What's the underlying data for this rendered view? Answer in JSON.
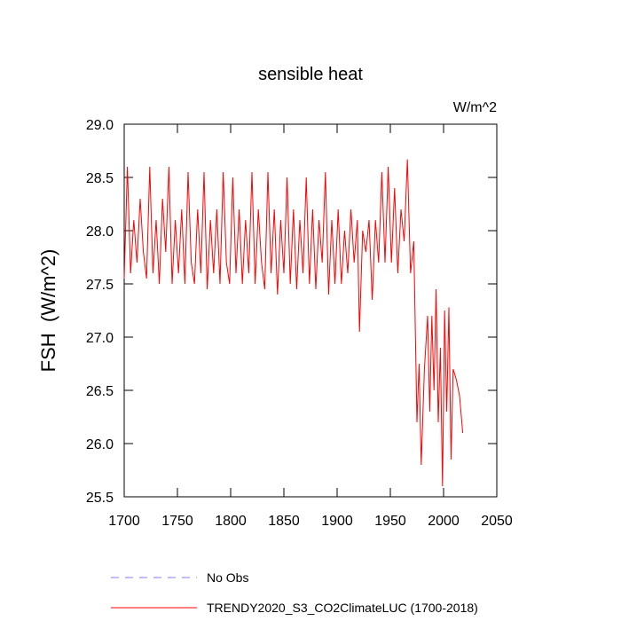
{
  "chart_data": {
    "type": "line",
    "title": "sensible heat",
    "units": "W/m^2",
    "y_label": "FSH  (W/m^2)",
    "xlim": [
      1700,
      2050
    ],
    "xticks": [
      1700,
      1750,
      1800,
      1850,
      1900,
      1950,
      2000,
      2050
    ],
    "ylim": [
      25.5,
      29.0
    ],
    "yticks": [
      25.5,
      {
        "value": 26,
        "label": "26.0"
      },
      26.5,
      {
        "value": 27,
        "label": "27.0"
      },
      27.5,
      {
        "value": 28,
        "label": "28.0"
      },
      28.5,
      {
        "value": 29,
        "label": "29.0"
      }
    ],
    "legend_entries": [
      {
        "name": "No Obs",
        "color": "#7f7fff",
        "dashed": true
      }
    ],
    "x": [
      1700,
      1703,
      1706,
      1709,
      1712,
      1715,
      1718,
      1721,
      1724,
      1727,
      1730,
      1733,
      1736,
      1739,
      1742,
      1745,
      1748,
      1751,
      1754,
      1757,
      1760,
      1763,
      1766,
      1769,
      1772,
      1775,
      1778,
      1781,
      1784,
      1787,
      1790,
      1793,
      1796,
      1799,
      1802,
      1805,
      1808,
      1811,
      1814,
      1817,
      1820,
      1823,
      1826,
      1829,
      1832,
      1835,
      1838,
      1841,
      1844,
      1847,
      1850,
      1853,
      1856,
      1859,
      1862,
      1865,
      1868,
      1871,
      1874,
      1877,
      1880,
      1883,
      1886,
      1889,
      1892,
      1895,
      1898,
      1901,
      1904,
      1907,
      1910,
      1913,
      1916,
      1919,
      1921,
      1924,
      1927,
      1930,
      1933,
      1936,
      1939,
      1942,
      1945,
      1948,
      1951,
      1954,
      1957,
      1960,
      1963,
      1966,
      1969,
      1972,
      1975,
      1977,
      1979,
      1982,
      1985,
      1987,
      1989,
      1991,
      1993,
      1995,
      1997,
      1999,
      2001,
      2003,
      2005,
      2007,
      2009,
      2012,
      2015,
      2018
    ],
    "series": [
      {
        "name": "TRENDY2020_S3_CO2ClimateLUC (1700-2018)",
        "color": "#ff0000",
        "values": [
          27.55,
          28.6,
          27.6,
          28.1,
          27.7,
          28.3,
          27.8,
          27.55,
          28.6,
          27.6,
          28.1,
          27.5,
          28.3,
          27.8,
          28.6,
          27.5,
          28.1,
          27.6,
          28.2,
          27.5,
          28.55,
          27.7,
          27.5,
          28.2,
          27.6,
          28.55,
          27.45,
          28.1,
          27.6,
          28.2,
          27.5,
          28.55,
          27.7,
          27.5,
          28.5,
          27.6,
          28.2,
          27.5,
          28.1,
          27.6,
          28.55,
          27.5,
          28.2,
          27.7,
          27.45,
          28.55,
          27.6,
          28.2,
          27.4,
          28.1,
          27.6,
          28.5,
          27.5,
          28.2,
          27.45,
          28.1,
          27.6,
          28.5,
          27.5,
          28.2,
          27.45,
          28.1,
          27.7,
          28.55,
          27.4,
          28.1,
          27.5,
          28.2,
          27.5,
          28.0,
          27.6,
          28.2,
          27.7,
          28.1,
          27.05,
          28.0,
          27.8,
          28.1,
          27.35,
          28.1,
          27.7,
          28.55,
          27.7,
          28.6,
          27.7,
          28.4,
          27.6,
          28.2,
          27.9,
          28.67,
          27.6,
          27.9,
          26.2,
          26.75,
          25.8,
          26.7,
          27.2,
          26.3,
          27.2,
          26.5,
          27.45,
          26.2,
          26.9,
          25.6,
          27.25,
          26.3,
          27.28,
          25.85,
          26.7,
          26.6,
          26.45,
          26.1
        ]
      }
    ]
  }
}
